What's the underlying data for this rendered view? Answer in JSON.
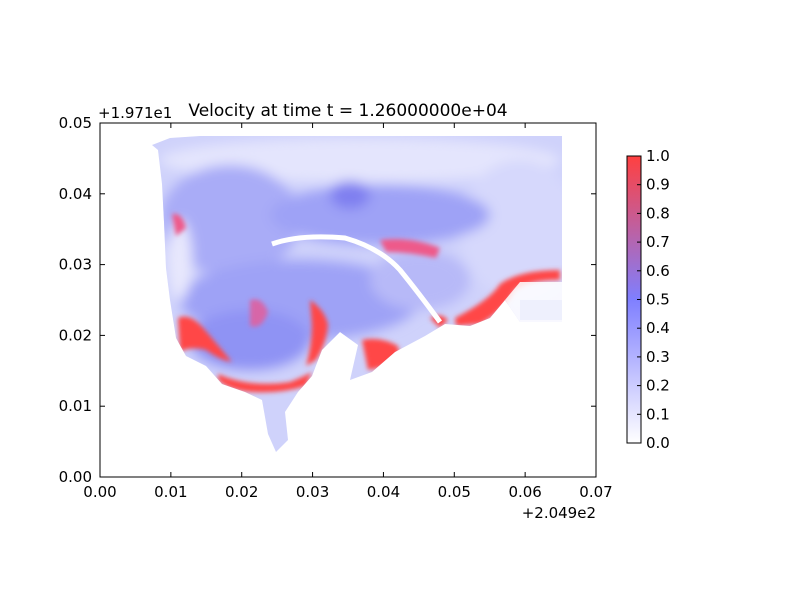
{
  "chart_data": {
    "type": "heatmap",
    "title": "Velocity at time t = 1.26000000e+04",
    "x_offset_label": "+2.049e2",
    "y_offset_label": "+1.971e1",
    "xlim": [
      0.0,
      0.07
    ],
    "ylim": [
      0.0,
      0.05
    ],
    "x_ticks": [
      "0.00",
      "0.01",
      "0.02",
      "0.03",
      "0.04",
      "0.05",
      "0.06",
      "0.07"
    ],
    "y_ticks": [
      "0.00",
      "0.01",
      "0.02",
      "0.03",
      "0.04",
      "0.05"
    ],
    "colorbar": {
      "range": [
        0.0,
        1.0
      ],
      "ticks": [
        "0.0",
        "0.1",
        "0.2",
        "0.3",
        "0.4",
        "0.5",
        "0.6",
        "0.7",
        "0.8",
        "0.9",
        "1.0"
      ],
      "colors": [
        "#ffffff",
        "#7f7fff",
        "#ff4040"
      ]
    },
    "field_extent": {
      "x": [
        0.007,
        0.065
      ],
      "y": [
        0.004,
        0.048
      ]
    },
    "high_velocity_regions": [
      {
        "x": 0.016,
        "y": 0.021,
        "value": 1.0
      },
      {
        "x": 0.024,
        "y": 0.013,
        "value": 1.0
      },
      {
        "x": 0.031,
        "y": 0.019,
        "value": 1.0
      },
      {
        "x": 0.038,
        "y": 0.018,
        "value": 1.0
      },
      {
        "x": 0.057,
        "y": 0.025,
        "value": 1.0
      },
      {
        "x": 0.041,
        "y": 0.031,
        "value": 0.9
      },
      {
        "x": 0.024,
        "y": 0.021,
        "value": 0.8
      }
    ]
  }
}
